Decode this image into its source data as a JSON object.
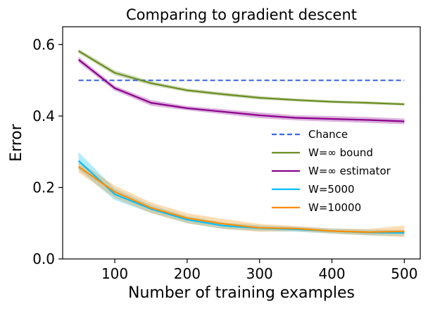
{
  "chart_data": {
    "type": "line",
    "title": "Comparing to gradient descent",
    "xlabel": "Number of training examples",
    "ylabel": "Error",
    "xlim": [
      28,
      522
    ],
    "ylim": [
      0,
      0.65
    ],
    "xticks": [
      100,
      200,
      300,
      400,
      500
    ],
    "yticks": [
      0.0,
      0.2,
      0.4,
      0.6
    ],
    "xtick_labels": [
      "100",
      "200",
      "300",
      "400",
      "500"
    ],
    "ytick_labels": [
      "0.0",
      "0.2",
      "0.4",
      "0.6"
    ],
    "grid": false,
    "legend_position": "center-right",
    "x": [
      50,
      100,
      150,
      200,
      250,
      300,
      350,
      400,
      450,
      500
    ],
    "series": [
      {
        "name": "Chance",
        "style": "dashed",
        "color": "#4169e1",
        "values": [
          0.5,
          0.5,
          0.5,
          0.5,
          0.5,
          0.5,
          0.5,
          0.5,
          0.5,
          0.5
        ]
      },
      {
        "name": "W=∞ bound",
        "style": "solid",
        "color": "#6b8e23",
        "values": [
          0.582,
          0.521,
          0.492,
          0.472,
          0.461,
          0.451,
          0.445,
          0.44,
          0.437,
          0.433
        ],
        "band": [
          0.006,
          0.007,
          0.006,
          0.005,
          0.005,
          0.005,
          0.004,
          0.004,
          0.004,
          0.004
        ]
      },
      {
        "name": "W=∞ estimator",
        "style": "solid",
        "color": "#8b008b",
        "values": [
          0.558,
          0.478,
          0.437,
          0.422,
          0.412,
          0.402,
          0.395,
          0.392,
          0.389,
          0.385
        ],
        "band": [
          0.008,
          0.007,
          0.008,
          0.006,
          0.007,
          0.008,
          0.007,
          0.008,
          0.008,
          0.008
        ]
      },
      {
        "name": "W=5000",
        "style": "solid",
        "color": "#00bfff",
        "values": [
          0.275,
          0.181,
          0.14,
          0.11,
          0.093,
          0.086,
          0.083,
          0.078,
          0.074,
          0.073
        ],
        "band": [
          0.024,
          0.016,
          0.011,
          0.01,
          0.009,
          0.008,
          0.007,
          0.007,
          0.008,
          0.008
        ]
      },
      {
        "name": "W=10000",
        "style": "solid",
        "color": "#ff8c00",
        "values": [
          0.258,
          0.188,
          0.143,
          0.114,
          0.098,
          0.087,
          0.085,
          0.078,
          0.075,
          0.077
        ],
        "band": [
          0.016,
          0.017,
          0.015,
          0.014,
          0.014,
          0.011,
          0.007,
          0.007,
          0.009,
          0.016
        ]
      }
    ]
  }
}
